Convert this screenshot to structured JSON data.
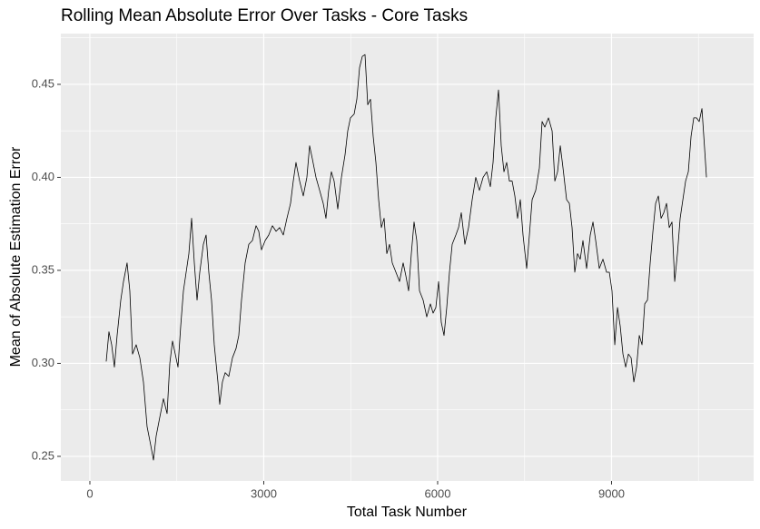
{
  "chart_data": {
    "type": "line",
    "title": "Rolling Mean Absolute Error Over Tasks - Core Tasks",
    "x_label": "Total Task Number",
    "y_label": "Mean of Absolute Estimation Error",
    "xlim": [
      -501,
      11452
    ],
    "ylim": [
      0.2368,
      0.4773
    ],
    "xticks": [
      0,
      3000,
      6000,
      9000
    ],
    "yticks": [
      0.25,
      {
        "value": 0.3,
        "label": "0.30"
      },
      0.35,
      {
        "value": 0.4,
        "label": "0.40"
      },
      0.45
    ],
    "x_minor_gridlines": [
      1500,
      4500,
      7500,
      10500
    ],
    "y_minor_gridlines": [
      0.275,
      0.325,
      0.375,
      0.425,
      0.475
    ],
    "grid": true,
    "x": [
      282,
      329,
      376,
      423,
      470,
      533,
      580,
      642,
      689,
      736,
      799,
      862,
      924,
      987,
      1050,
      1097,
      1144,
      1206,
      1269,
      1332,
      1379,
      1426,
      1473,
      1520,
      1567,
      1614,
      1661,
      1708,
      1755,
      1802,
      1849,
      1896,
      1958,
      2005,
      2052,
      2099,
      2146,
      2209,
      2240,
      2287,
      2334,
      2397,
      2460,
      2522,
      2569,
      2616,
      2679,
      2742,
      2804,
      2867,
      2914,
      2961,
      3024,
      3086,
      3149,
      3212,
      3274,
      3337,
      3400,
      3462,
      3509,
      3556,
      3619,
      3682,
      3744,
      3791,
      3838,
      3901,
      3964,
      4026,
      4073,
      4120,
      4167,
      4214,
      4277,
      4340,
      4402,
      4449,
      4496,
      4559,
      4606,
      4653,
      4700,
      4747,
      4794,
      4841,
      4888,
      4935,
      4982,
      5029,
      5076,
      5123,
      5170,
      5217,
      5280,
      5342,
      5405,
      5452,
      5499,
      5546,
      5593,
      5640,
      5687,
      5750,
      5812,
      5875,
      5922,
      5969,
      6016,
      6063,
      6110,
      6157,
      6204,
      6251,
      6314,
      6361,
      6408,
      6470,
      6533,
      6596,
      6658,
      6721,
      6784,
      6847,
      6909,
      6956,
      7003,
      7050,
      7097,
      7144,
      7191,
      7238,
      7285,
      7332,
      7379,
      7426,
      7473,
      7536,
      7583,
      7630,
      7692,
      7755,
      7802,
      7849,
      7912,
      7975,
      8022,
      8069,
      8116,
      8163,
      8225,
      8272,
      8319,
      8366,
      8413,
      8460,
      8507,
      8570,
      8633,
      8680,
      8727,
      8789,
      8852,
      8915,
      8962,
      9008,
      9056,
      9103,
      9150,
      9197,
      9244,
      9291,
      9338,
      9385,
      9432,
      9479,
      9526,
      9573,
      9620,
      9667,
      9714,
      9761,
      9808,
      9855,
      9902,
      9949,
      9996,
      10043,
      10090,
      10137,
      10184,
      10231,
      10278,
      10325,
      10372,
      10419,
      10466,
      10513,
      10560,
      10607,
      10638
    ],
    "series": [
      {
        "color": "#000000",
        "values": [
          0.301,
          0.317,
          0.31,
          0.298,
          0.315,
          0.334,
          0.344,
          0.354,
          0.339,
          0.305,
          0.31,
          0.303,
          0.29,
          0.266,
          0.256,
          0.248,
          0.261,
          0.271,
          0.281,
          0.273,
          0.3,
          0.312,
          0.305,
          0.298,
          0.32,
          0.339,
          0.349,
          0.359,
          0.378,
          0.354,
          0.334,
          0.349,
          0.364,
          0.369,
          0.349,
          0.334,
          0.31,
          0.29,
          0.278,
          0.29,
          0.295,
          0.293,
          0.303,
          0.308,
          0.315,
          0.334,
          0.354,
          0.364,
          0.366,
          0.374,
          0.371,
          0.361,
          0.366,
          0.369,
          0.374,
          0.371,
          0.373,
          0.369,
          0.378,
          0.386,
          0.398,
          0.408,
          0.398,
          0.39,
          0.4,
          0.417,
          0.41,
          0.4,
          0.393,
          0.386,
          0.378,
          0.393,
          0.403,
          0.398,
          0.383,
          0.4,
          0.412,
          0.425,
          0.432,
          0.434,
          0.442,
          0.459,
          0.465,
          0.466,
          0.439,
          0.442,
          0.422,
          0.408,
          0.388,
          0.373,
          0.378,
          0.359,
          0.364,
          0.354,
          0.349,
          0.344,
          0.354,
          0.347,
          0.339,
          0.359,
          0.376,
          0.366,
          0.339,
          0.334,
          0.325,
          0.332,
          0.327,
          0.33,
          0.344,
          0.322,
          0.315,
          0.33,
          0.349,
          0.364,
          0.369,
          0.373,
          0.381,
          0.364,
          0.373,
          0.388,
          0.4,
          0.393,
          0.4,
          0.403,
          0.395,
          0.408,
          0.432,
          0.447,
          0.417,
          0.403,
          0.408,
          0.398,
          0.398,
          0.39,
          0.378,
          0.388,
          0.369,
          0.351,
          0.369,
          0.388,
          0.393,
          0.405,
          0.43,
          0.427,
          0.432,
          0.425,
          0.398,
          0.403,
          0.417,
          0.405,
          0.388,
          0.386,
          0.373,
          0.349,
          0.359,
          0.356,
          0.366,
          0.351,
          0.369,
          0.376,
          0.366,
          0.351,
          0.356,
          0.349,
          0.349,
          0.339,
          0.31,
          0.33,
          0.32,
          0.305,
          0.298,
          0.305,
          0.303,
          0.29,
          0.298,
          0.315,
          0.31,
          0.332,
          0.334,
          0.354,
          0.371,
          0.386,
          0.39,
          0.378,
          0.381,
          0.386,
          0.373,
          0.376,
          0.344,
          0.359,
          0.378,
          0.388,
          0.398,
          0.403,
          0.422,
          0.432,
          0.432,
          0.43,
          0.437,
          0.415,
          0.4
        ]
      }
    ]
  }
}
